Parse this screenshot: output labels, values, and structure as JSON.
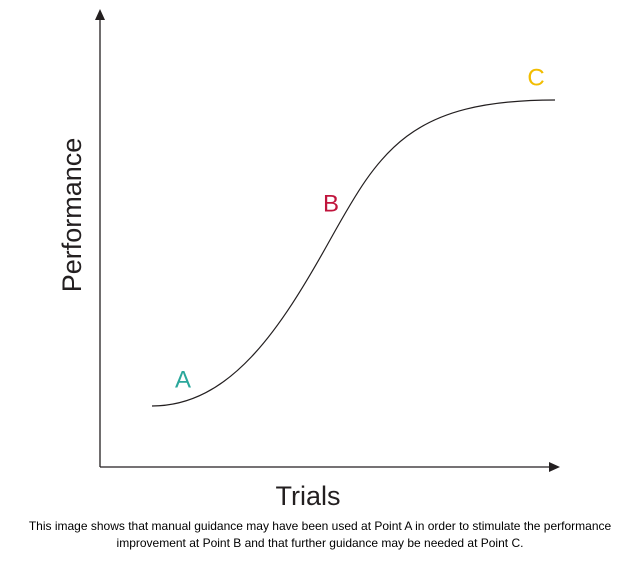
{
  "axes": {
    "x_label": "Trials",
    "y_label": "Performance"
  },
  "points": [
    {
      "label": "A"
    },
    {
      "label": "B"
    },
    {
      "label": "C"
    }
  ],
  "caption": [
    "This image shows that manual guidance may have been used at Point A in order to stimulate the performance",
    "improvement at Point B and that further guidance may be needed at Point C."
  ]
}
